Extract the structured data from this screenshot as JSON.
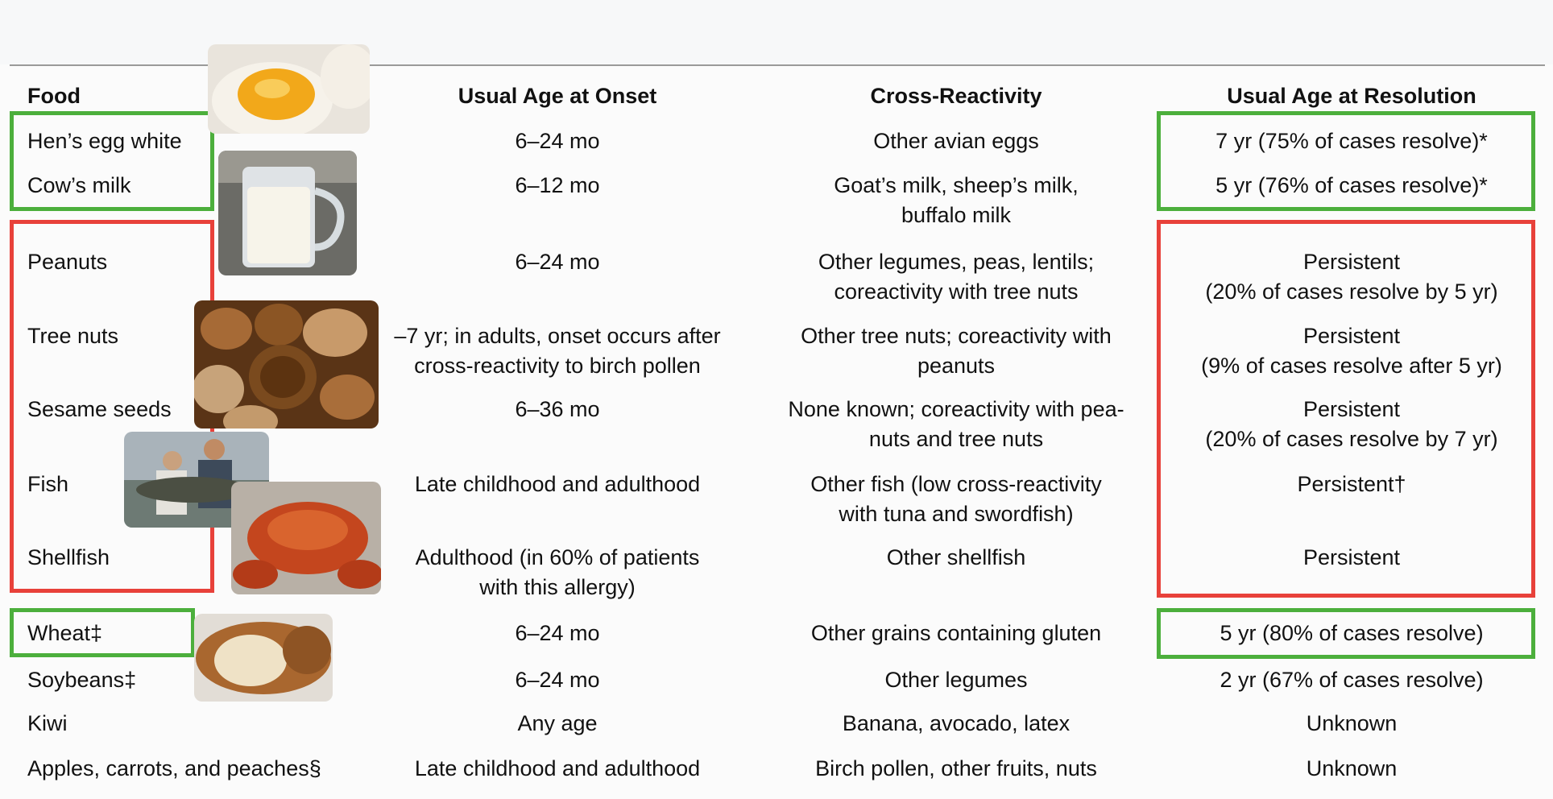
{
  "header": {
    "food": "Food",
    "onset": "Usual Age at Onset",
    "cross": "Cross-Reactivity",
    "resolution": "Usual Age at Resolution"
  },
  "rows": [
    {
      "food": "Hen’s egg white",
      "onset": [
        "6–24 mo"
      ],
      "cross": [
        "Other avian eggs"
      ],
      "resolution": [
        "7 yr (75% of cases resolve)*"
      ]
    },
    {
      "food": "Cow’s milk",
      "onset": [
        "6–12 mo"
      ],
      "cross": [
        "Goat’s milk, sheep’s milk,",
        "buffalo milk"
      ],
      "resolution": [
        "5 yr (76% of cases resolve)*"
      ]
    },
    {
      "food": "Peanuts",
      "onset": [
        "6–24 mo"
      ],
      "cross": [
        "Other legumes, peas, lentils;",
        "coreactivity with tree nuts"
      ],
      "resolution": [
        "Persistent",
        "(20% of cases resolve by 5 yr)"
      ]
    },
    {
      "food": "Tree nuts",
      "onset": [
        "–7 yr; in adults, onset occurs after",
        "cross-reactivity to birch pollen"
      ],
      "cross": [
        "Other tree nuts; coreactivity with",
        "peanuts"
      ],
      "resolution": [
        "Persistent",
        "(9% of cases resolve after 5 yr)"
      ]
    },
    {
      "food": "Sesame seeds",
      "onset": [
        "6–36 mo"
      ],
      "cross": [
        "None known; coreactivity with pea-",
        "nuts and tree nuts"
      ],
      "resolution": [
        "Persistent",
        "(20% of cases resolve by 7 yr)"
      ]
    },
    {
      "food": "Fish",
      "onset": [
        "Late childhood and adulthood"
      ],
      "cross": [
        "Other fish (low cross-reactivity",
        "with tuna and swordfish)"
      ],
      "resolution": [
        "Persistent†"
      ]
    },
    {
      "food": "Shellfish",
      "onset": [
        "Adulthood (in 60% of patients",
        "with this allergy)"
      ],
      "cross": [
        "Other shellfish"
      ],
      "resolution": [
        "Persistent"
      ]
    },
    {
      "food": "Wheat‡",
      "onset": [
        "6–24 mo"
      ],
      "cross": [
        "Other grains containing gluten"
      ],
      "resolution": [
        "5 yr (80% of cases resolve)"
      ]
    },
    {
      "food": "Soybeans‡",
      "onset": [
        "6–24 mo"
      ],
      "cross": [
        "Other legumes"
      ],
      "resolution": [
        "2 yr (67% of cases resolve)"
      ]
    },
    {
      "food": "Kiwi",
      "onset": [
        "Any age"
      ],
      "cross": [
        "Banana, avocado, latex"
      ],
      "resolution": [
        "Unknown"
      ]
    },
    {
      "food": "Apples, carrots, and peaches§",
      "onset": [
        "Late childhood and adulthood"
      ],
      "cross": [
        "Birch pollen, other fruits, nuts"
      ],
      "resolution": [
        "Unknown"
      ]
    }
  ]
}
